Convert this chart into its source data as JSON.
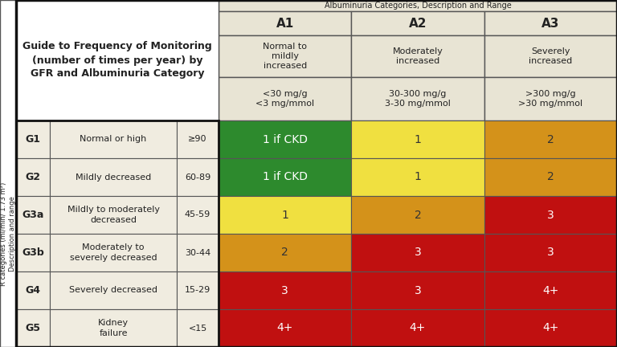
{
  "col_headers": [
    "A1",
    "A2",
    "A3"
  ],
  "col_sub1": [
    "Normal to\nmildly\nincreased",
    "Moderately\nincreased",
    "Severely\nincreased"
  ],
  "col_sub2": [
    "<30 mg/g\n<3 mg/mmol",
    "30-300 mg/g\n3-30 mg/mmol",
    ">300 mg/g\n>30 mg/mmol"
  ],
  "top_strip_text": "Albuminuria Categories, Description and Range",
  "row_labels": [
    "G1",
    "G2",
    "G3a",
    "G3b",
    "G4",
    "G5"
  ],
  "row_desc": [
    "Normal or high",
    "Mildly decreased",
    "Mildly to moderately\ndecreased",
    "Moderately to\nseverely decreased",
    "Severely decreased",
    "Kidney\nfailure"
  ],
  "row_range": [
    "≥90",
    "60-89",
    "45-59",
    "30-44",
    "15-29",
    "<15"
  ],
  "cell_values": [
    [
      "1 if CKD",
      "1",
      "2"
    ],
    [
      "1 if CKD",
      "1",
      "2"
    ],
    [
      "1",
      "2",
      "3"
    ],
    [
      "2",
      "3",
      "3"
    ],
    [
      "3",
      "3",
      "4+"
    ],
    [
      "4+",
      "4+",
      "4+"
    ]
  ],
  "cell_colors": [
    [
      "#2d8a2d",
      "#f0e040",
      "#d4921a"
    ],
    [
      "#2d8a2d",
      "#f0e040",
      "#d4921a"
    ],
    [
      "#f0e040",
      "#d4921a",
      "#c01010"
    ],
    [
      "#d4921a",
      "#c01010",
      "#c01010"
    ],
    [
      "#c01010",
      "#c01010",
      "#c01010"
    ],
    [
      "#c01010",
      "#c01010",
      "#c01010"
    ]
  ],
  "title_lines": [
    "Guide to Frequency of Monitoring",
    "(number of times per year) by",
    "GFR and Albuminuria Category"
  ],
  "ylabel_lines": [
    "R categories (ml/min/ 1.73 m²)",
    "Description and range"
  ],
  "bg_color": "#f0ece0",
  "header_bg": "#e8e4d4",
  "white": "#ffffff",
  "green": "#2d8a2d",
  "yellow": "#f0e040",
  "orange": "#d4921a",
  "red": "#c01010"
}
